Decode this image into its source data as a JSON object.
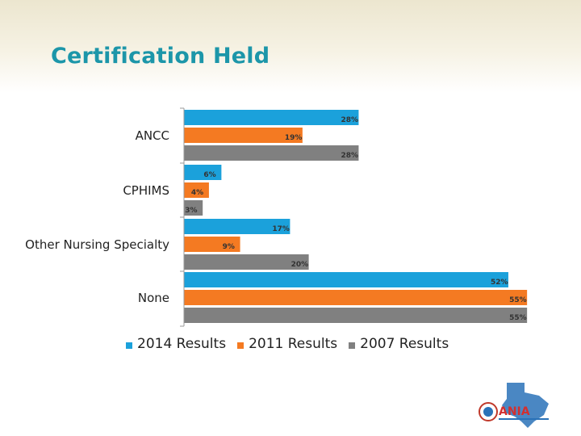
{
  "page": {
    "title": "Certification Held"
  },
  "colors": {
    "series_2014": "#1ba1db",
    "series_2011": "#f47a22",
    "series_2007": "#808080",
    "title": "#1c96a9"
  },
  "logo": {
    "name": "ANIA logo with Texas map",
    "text": "ANIA"
  },
  "chart_data": {
    "type": "bar",
    "orientation": "horizontal",
    "categories": [
      "ANCC",
      "CPHIMS",
      "Other Nursing Specialty",
      "None"
    ],
    "series": [
      {
        "name": "2014 Results",
        "values": [
          28,
          6,
          17,
          52
        ],
        "labels": [
          "28%",
          "6%",
          "17%",
          "52%"
        ]
      },
      {
        "name": "2011 Results",
        "values": [
          19,
          4,
          9,
          55
        ],
        "labels": [
          "19%",
          "4%",
          "9%",
          "55%"
        ]
      },
      {
        "name": "2007 Results",
        "values": [
          28,
          3,
          20,
          55
        ],
        "labels": [
          "28%",
          "3%",
          "20%",
          "55%"
        ]
      }
    ],
    "xlim": [
      0,
      55
    ],
    "legend": "bottom",
    "grid": false
  }
}
